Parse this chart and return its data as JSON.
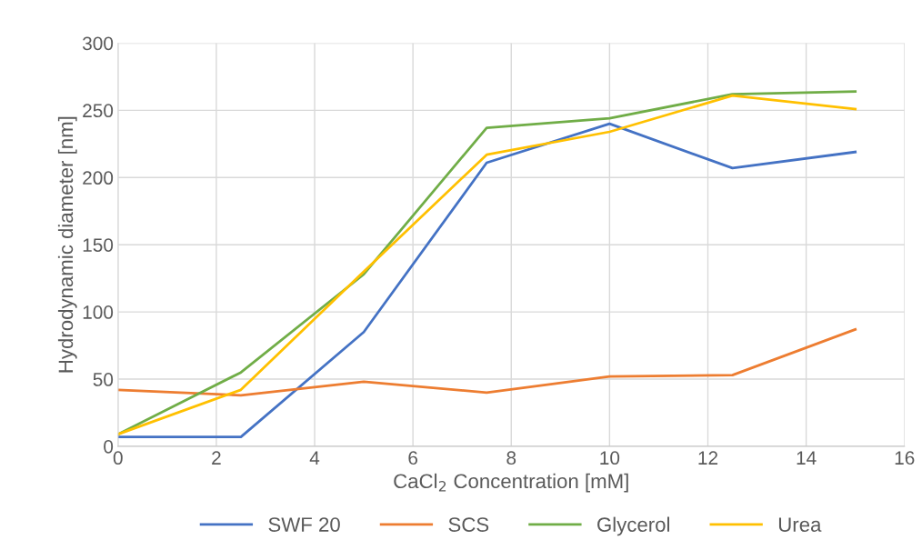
{
  "chart_data": {
    "type": "line",
    "xlabel": "CaCl$_{2}$ Concentration [mM]",
    "ylabel": "Hydrodynamic diameter [nm]",
    "x": [
      0,
      2.5,
      5,
      7.5,
      10,
      12.5,
      15
    ],
    "series": [
      {
        "name": "SWF 20",
        "color": "#4472c4",
        "values": [
          7,
          7,
          85,
          211,
          240,
          207,
          219
        ]
      },
      {
        "name": "SCS",
        "color": "#ed7d31",
        "values": [
          42,
          38,
          48,
          40,
          52,
          53,
          87
        ]
      },
      {
        "name": "Glycerol",
        "color": "#70ad47",
        "values": [
          9,
          55,
          128,
          237,
          244,
          262,
          264
        ]
      },
      {
        "name": "Urea",
        "color": "#ffc000",
        "values": [
          9,
          42,
          130,
          217,
          234,
          261,
          251
        ]
      }
    ],
    "xlim": [
      0,
      16
    ],
    "xticks": [
      0,
      2,
      4,
      6,
      8,
      10,
      12,
      14,
      16
    ],
    "ylim": [
      0,
      300
    ],
    "yticks": [
      0,
      50,
      100,
      150,
      200,
      250,
      300
    ],
    "grid": true,
    "legend": "bottom",
    "marker": "none",
    "line_style": "solid"
  }
}
